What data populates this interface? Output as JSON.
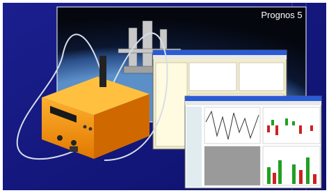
{
  "banner": {
    "title": "Prognos 5"
  }
}
